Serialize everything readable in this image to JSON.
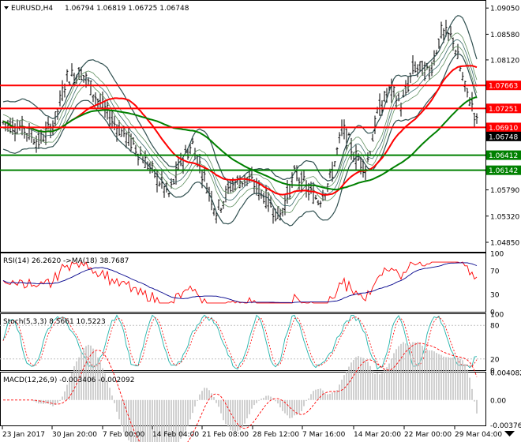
{
  "header": {
    "symbol": "EURUSD,H4",
    "ohlc": "1.06794 1.06819 1.06725 1.06748"
  },
  "price_pane": {
    "ticks": [
      "1.09050",
      "1.08580",
      "1.08120",
      "1.07663",
      "1.07251",
      "1.06910",
      "1.06748",
      "1.06412",
      "1.06142",
      "1.05790",
      "1.05320",
      "1.04850"
    ],
    "horizontal_levels": [
      {
        "label": "1.07663",
        "color": "#ff0000"
      },
      {
        "label": "1.07251",
        "color": "#ff0000"
      },
      {
        "label": "1.06910",
        "color": "#ff0000"
      },
      {
        "label": "1.06412",
        "color": "#008000"
      },
      {
        "label": "1.06142",
        "color": "#008000"
      }
    ],
    "current_price": "1.06748"
  },
  "rsi_pane": {
    "title": "RSI(14) 26.2620  ->MA(18) 38.7687",
    "ticks": [
      "100",
      "70",
      "30",
      "0"
    ]
  },
  "stoch_pane": {
    "title": "Stoch(5,3,3) 8.5661 10.5223",
    "ticks": [
      "100",
      "80",
      "20",
      "0"
    ]
  },
  "macd_pane": {
    "title": "MACD(12,26,9) -0.003406 -0.002092",
    "ticks": [
      "0.004082",
      "0.00",
      "-0.003762"
    ]
  },
  "time_axis": [
    "23 Jan 2017",
    "30 Jan 20:00",
    "7 Feb 00:00",
    "14 Feb 04:00",
    "21 Feb 08:00",
    "28 Feb 12:00",
    "7 Mar 16:00",
    "14 Mar 20:00",
    "22 Mar 00:00",
    "29 Mar 04:00"
  ],
  "colors": {
    "resistance": "#ff0000",
    "support": "#008000",
    "ma_red": "#ff0000",
    "ma_green": "#008000",
    "bands": "#2f4f4f",
    "rsi": "#ff0000",
    "rsi_ma": "#00008b",
    "stoch_main": "#20b2aa",
    "stoch_signal": "#ff0000",
    "macd_hist": "#c0c0c0",
    "macd_signal": "#ff0000",
    "current_price_bg": "#000000"
  }
}
